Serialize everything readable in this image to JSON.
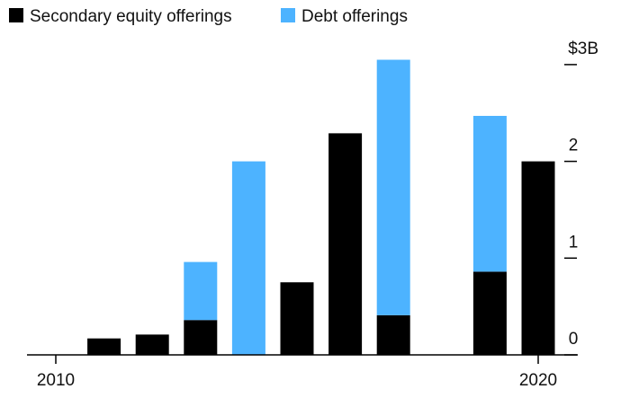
{
  "chart_data": {
    "type": "stacked-bar",
    "categories": [
      "2010",
      null,
      null,
      null,
      null,
      null,
      null,
      null,
      null,
      null,
      "2020"
    ],
    "series": [
      {
        "name": "Secondary equity offerings",
        "color": "#000000",
        "values": [
          0,
          0.17,
          0.21,
          0.36,
          0,
          0.75,
          2.29,
          0.41,
          0,
          0.86,
          2.0
        ]
      },
      {
        "name": "Debt offerings",
        "color": "#4db3ff",
        "values": [
          0,
          0,
          0,
          0.6,
          2.0,
          0,
          0,
          2.64,
          0,
          1.61,
          0
        ]
      }
    ],
    "ylim": [
      0,
      3.1
    ],
    "yticks": [
      0,
      1,
      2,
      {
        "value": 3,
        "label": "$3B"
      }
    ]
  }
}
